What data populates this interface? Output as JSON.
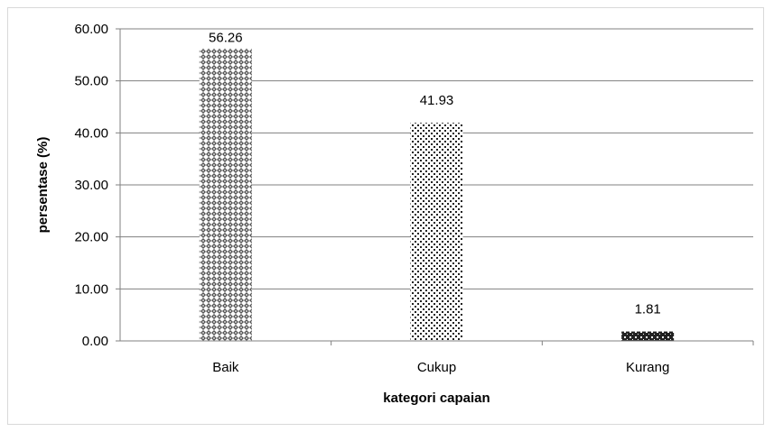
{
  "chart_data": {
    "type": "bar",
    "categories": [
      "Baik",
      "Cukup",
      "Kurang"
    ],
    "values": [
      56.26,
      41.93,
      1.81
    ],
    "data_labels": [
      "56.26",
      "41.93",
      "1.81"
    ],
    "title": "",
    "xlabel": "kategori capaian",
    "ylabel": "persentase (%)",
    "ylim": [
      0,
      60
    ],
    "yticks": [
      "0.00",
      "10.00",
      "20.00",
      "30.00",
      "40.00",
      "50.00",
      "60.00"
    ],
    "grid": true,
    "legend": "none",
    "patterns": [
      "diamond-lattice",
      "dots",
      "checker"
    ],
    "colors": {
      "bar_fill": "#4a4a4a",
      "grid": "#808080",
      "axis": "#808080"
    }
  }
}
